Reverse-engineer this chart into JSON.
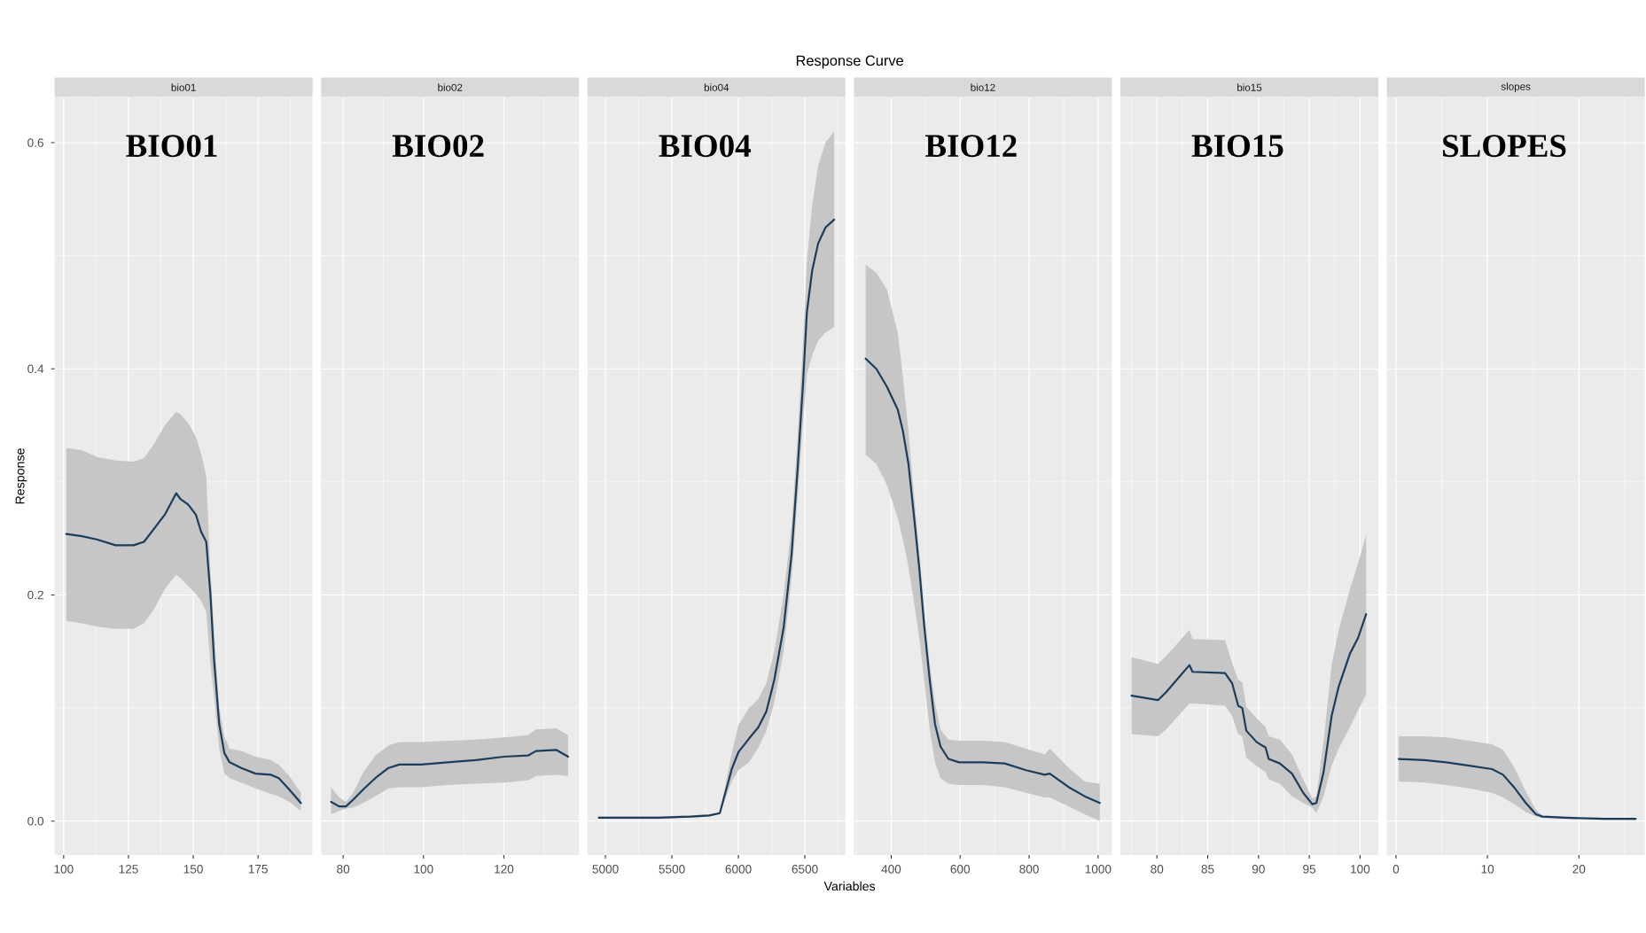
{
  "chart_data": [
    {
      "type": "line",
      "subtitle": "bio01",
      "annotations": [
        "BIO01"
      ],
      "ylabel": "Response",
      "x": [
        101,
        107,
        113,
        120,
        127,
        131,
        135,
        139,
        143.4,
        145,
        148,
        151,
        153,
        155,
        156.6,
        158,
        160,
        162,
        164,
        168.5,
        174,
        180,
        183,
        187,
        191.5
      ],
      "series": [
        {
          "color": "#1a3d5c",
          "values": [
            0.254,
            0.252,
            0.249,
            0.244,
            0.244,
            0.247,
            0.259,
            0.271,
            0.29,
            0.285,
            0.28,
            0.271,
            0.256,
            0.247,
            0.201,
            0.143,
            0.086,
            0.06,
            0.052,
            0.047,
            0.042,
            0.041,
            0.038,
            0.028,
            0.016
          ],
          "upper": [
            0.33,
            0.328,
            0.322,
            0.319,
            0.318,
            0.321,
            0.334,
            0.35,
            0.362,
            0.36,
            0.352,
            0.34,
            0.325,
            0.305,
            0.22,
            0.17,
            0.1,
            0.075,
            0.064,
            0.062,
            0.057,
            0.054,
            0.05,
            0.04,
            0.025
          ],
          "lower": [
            0.177,
            0.175,
            0.172,
            0.17,
            0.17,
            0.175,
            0.188,
            0.205,
            0.218,
            0.215,
            0.208,
            0.201,
            0.195,
            0.185,
            0.14,
            0.11,
            0.064,
            0.042,
            0.038,
            0.034,
            0.029,
            0.024,
            0.022,
            0.017,
            0.009
          ]
        }
      ],
      "xlim": [
        96.5,
        196
      ],
      "ylim": [
        -0.03,
        0.64
      ],
      "xticks": [
        100,
        125,
        150,
        175
      ],
      "yticks": [
        {
          "value": 0,
          "label": "0.0"
        },
        0.2,
        0.4,
        0.6
      ],
      "grid": true
    },
    {
      "type": "line",
      "subtitle": "bio02",
      "annotations": [
        "BIO02"
      ],
      "x": [
        77,
        79,
        80.7,
        82.5,
        85,
        88,
        91.3,
        94,
        99.4,
        106,
        113,
        120,
        126,
        128,
        133,
        136
      ],
      "series": [
        {
          "color": "#1a3d5c",
          "values": [
            0.017,
            0.013,
            0.013,
            0.019,
            0.028,
            0.038,
            0.047,
            0.05,
            0.05,
            0.052,
            0.054,
            0.057,
            0.058,
            0.062,
            0.063,
            0.057
          ],
          "upper": [
            0.03,
            0.021,
            0.017,
            0.025,
            0.043,
            0.058,
            0.067,
            0.07,
            0.07,
            0.071,
            0.072,
            0.074,
            0.076,
            0.081,
            0.082,
            0.076
          ],
          "lower": [
            0.006,
            0.009,
            0.011,
            0.012,
            0.016,
            0.022,
            0.029,
            0.03,
            0.03,
            0.032,
            0.033,
            0.034,
            0.036,
            0.04,
            0.041,
            0.04
          ]
        }
      ],
      "xlim": [
        74.5,
        138.7
      ],
      "ylim": [
        -0.03,
        0.64
      ],
      "xticks": [
        80,
        100,
        120
      ],
      "yticks": [
        0,
        0.2,
        0.4,
        0.6
      ],
      "grid": true,
      "tick_labels": "x"
    },
    {
      "type": "line",
      "subtitle": "bio04",
      "annotations": [
        "BIO04"
      ],
      "x": [
        4950,
        5200,
        5400,
        5640,
        5780,
        5860,
        5950,
        6000,
        6080,
        6150,
        6210,
        6270,
        6340,
        6400,
        6445,
        6485,
        6515,
        6555,
        6600,
        6655,
        6720
      ],
      "series": [
        {
          "color": "#1a3d5c",
          "values": [
            0.003,
            0.003,
            0.003,
            0.004,
            0.005,
            0.007,
            0.046,
            0.061,
            0.073,
            0.083,
            0.097,
            0.125,
            0.171,
            0.236,
            0.311,
            0.385,
            0.45,
            0.487,
            0.511,
            0.525,
            0.532
          ],
          "upper": [
            0.004,
            0.004,
            0.004,
            0.005,
            0.006,
            0.008,
            0.06,
            0.085,
            0.1,
            0.108,
            0.122,
            0.15,
            0.2,
            0.262,
            0.34,
            0.42,
            0.495,
            0.545,
            0.58,
            0.6,
            0.61
          ],
          "lower": [
            0.002,
            0.002,
            0.002,
            0.003,
            0.004,
            0.006,
            0.035,
            0.045,
            0.052,
            0.065,
            0.08,
            0.105,
            0.15,
            0.215,
            0.285,
            0.35,
            0.395,
            0.412,
            0.425,
            0.432,
            0.437
          ]
        }
      ],
      "xlim": [
        4865,
        6805
      ],
      "ylim": [
        -0.03,
        0.64
      ],
      "xticks": [
        5000,
        5500,
        6000,
        6500
      ],
      "yticks": [
        0,
        0.2,
        0.4,
        0.6
      ],
      "grid": true,
      "tick_labels": "x"
    },
    {
      "type": "line",
      "title": "Response Curve",
      "subtitle": "bio12",
      "xlabel": "Variables",
      "annotations": [
        "BIO12"
      ],
      "x": [
        326,
        357,
        388,
        419,
        434,
        450,
        465,
        481,
        496,
        512,
        527,
        543,
        566,
        597,
        667,
        729,
        791,
        845,
        860,
        915,
        961,
        1005
      ],
      "series": [
        {
          "color": "#1a3d5c",
          "values": [
            0.409,
            0.4,
            0.384,
            0.364,
            0.345,
            0.316,
            0.273,
            0.225,
            0.172,
            0.124,
            0.086,
            0.066,
            0.055,
            0.052,
            0.052,
            0.051,
            0.045,
            0.041,
            0.042,
            0.03,
            0.022,
            0.016
          ],
          "upper": [
            0.492,
            0.485,
            0.47,
            0.432,
            0.393,
            0.345,
            0.292,
            0.239,
            0.187,
            0.138,
            0.105,
            0.081,
            0.072,
            0.071,
            0.071,
            0.07,
            0.064,
            0.059,
            0.064,
            0.047,
            0.035,
            0.033
          ],
          "lower": [
            0.324,
            0.316,
            0.297,
            0.268,
            0.249,
            0.225,
            0.196,
            0.163,
            0.124,
            0.081,
            0.052,
            0.038,
            0.033,
            0.032,
            0.032,
            0.03,
            0.025,
            0.021,
            0.021,
            0.013,
            0.006,
            0.0
          ]
        }
      ],
      "xlim": [
        292,
        1040
      ],
      "ylim": [
        -0.03,
        0.64
      ],
      "xticks": [
        400,
        600,
        800,
        1000
      ],
      "yticks": [
        0,
        0.2,
        0.4,
        0.6
      ],
      "grid": true,
      "tick_labels": "x"
    },
    {
      "type": "line",
      "subtitle": "bio15",
      "annotations": [
        "BIO15"
      ],
      "x": [
        77.5,
        80.1,
        80.9,
        83.2,
        83.5,
        86.7,
        87.4,
        88.0,
        88.4,
        88.8,
        89.8,
        90.7,
        91.0,
        92.1,
        93.3,
        94.4,
        95.3,
        95.7,
        96.4,
        97.2,
        97.9,
        99.0,
        99.8,
        100.6
      ],
      "series": [
        {
          "color": "#1a3d5c",
          "values": [
            0.111,
            0.107,
            0.114,
            0.138,
            0.132,
            0.131,
            0.122,
            0.102,
            0.1,
            0.08,
            0.07,
            0.065,
            0.055,
            0.051,
            0.042,
            0.025,
            0.015,
            0.016,
            0.043,
            0.093,
            0.119,
            0.148,
            0.162,
            0.183
          ],
          "upper": [
            0.145,
            0.139,
            0.146,
            0.169,
            0.161,
            0.16,
            0.14,
            0.125,
            0.123,
            0.101,
            0.091,
            0.083,
            0.075,
            0.072,
            0.059,
            0.037,
            0.02,
            0.022,
            0.07,
            0.138,
            0.169,
            0.205,
            0.228,
            0.253
          ],
          "lower": [
            0.077,
            0.075,
            0.081,
            0.104,
            0.104,
            0.102,
            0.093,
            0.077,
            0.075,
            0.056,
            0.049,
            0.043,
            0.037,
            0.033,
            0.022,
            0.016,
            0.012,
            0.007,
            0.022,
            0.049,
            0.064,
            0.083,
            0.098,
            0.112
          ]
        }
      ],
      "xlim": [
        76.4,
        101.8
      ],
      "ylim": [
        -0.03,
        0.64
      ],
      "xticks": [
        80,
        85,
        90,
        95,
        100
      ],
      "yticks": [
        0,
        0.2,
        0.4,
        0.6
      ],
      "grid": true,
      "tick_labels": "x"
    },
    {
      "type": "line",
      "subtitle": "slopes",
      "annotations": [
        "SLOPES"
      ],
      "x": [
        0.3,
        3.1,
        5.5,
        8.0,
        10.5,
        11.7,
        12.9,
        14.2,
        15.3,
        16.0,
        18.5,
        22.8,
        26.2
      ],
      "series": [
        {
          "color": "#1a3d5c",
          "values": [
            0.055,
            0.054,
            0.052,
            0.049,
            0.046,
            0.041,
            0.03,
            0.016,
            0.006,
            0.004,
            0.003,
            0.002,
            0.002
          ],
          "upper": [
            0.075,
            0.075,
            0.074,
            0.071,
            0.068,
            0.063,
            0.048,
            0.026,
            0.01,
            0.005,
            0.004,
            0.003,
            0.003
          ],
          "lower": [
            0.035,
            0.034,
            0.032,
            0.029,
            0.025,
            0.021,
            0.015,
            0.008,
            0.004,
            0.003,
            0.002,
            0.001,
            0.001
          ]
        }
      ],
      "xlim": [
        -1.0,
        27.2
      ],
      "ylim": [
        -0.03,
        0.64
      ],
      "xticks": [
        0,
        10,
        20
      ],
      "yticks": [
        0,
        0.2,
        0.4,
        0.6
      ],
      "grid": true,
      "tick_labels": "x"
    }
  ]
}
